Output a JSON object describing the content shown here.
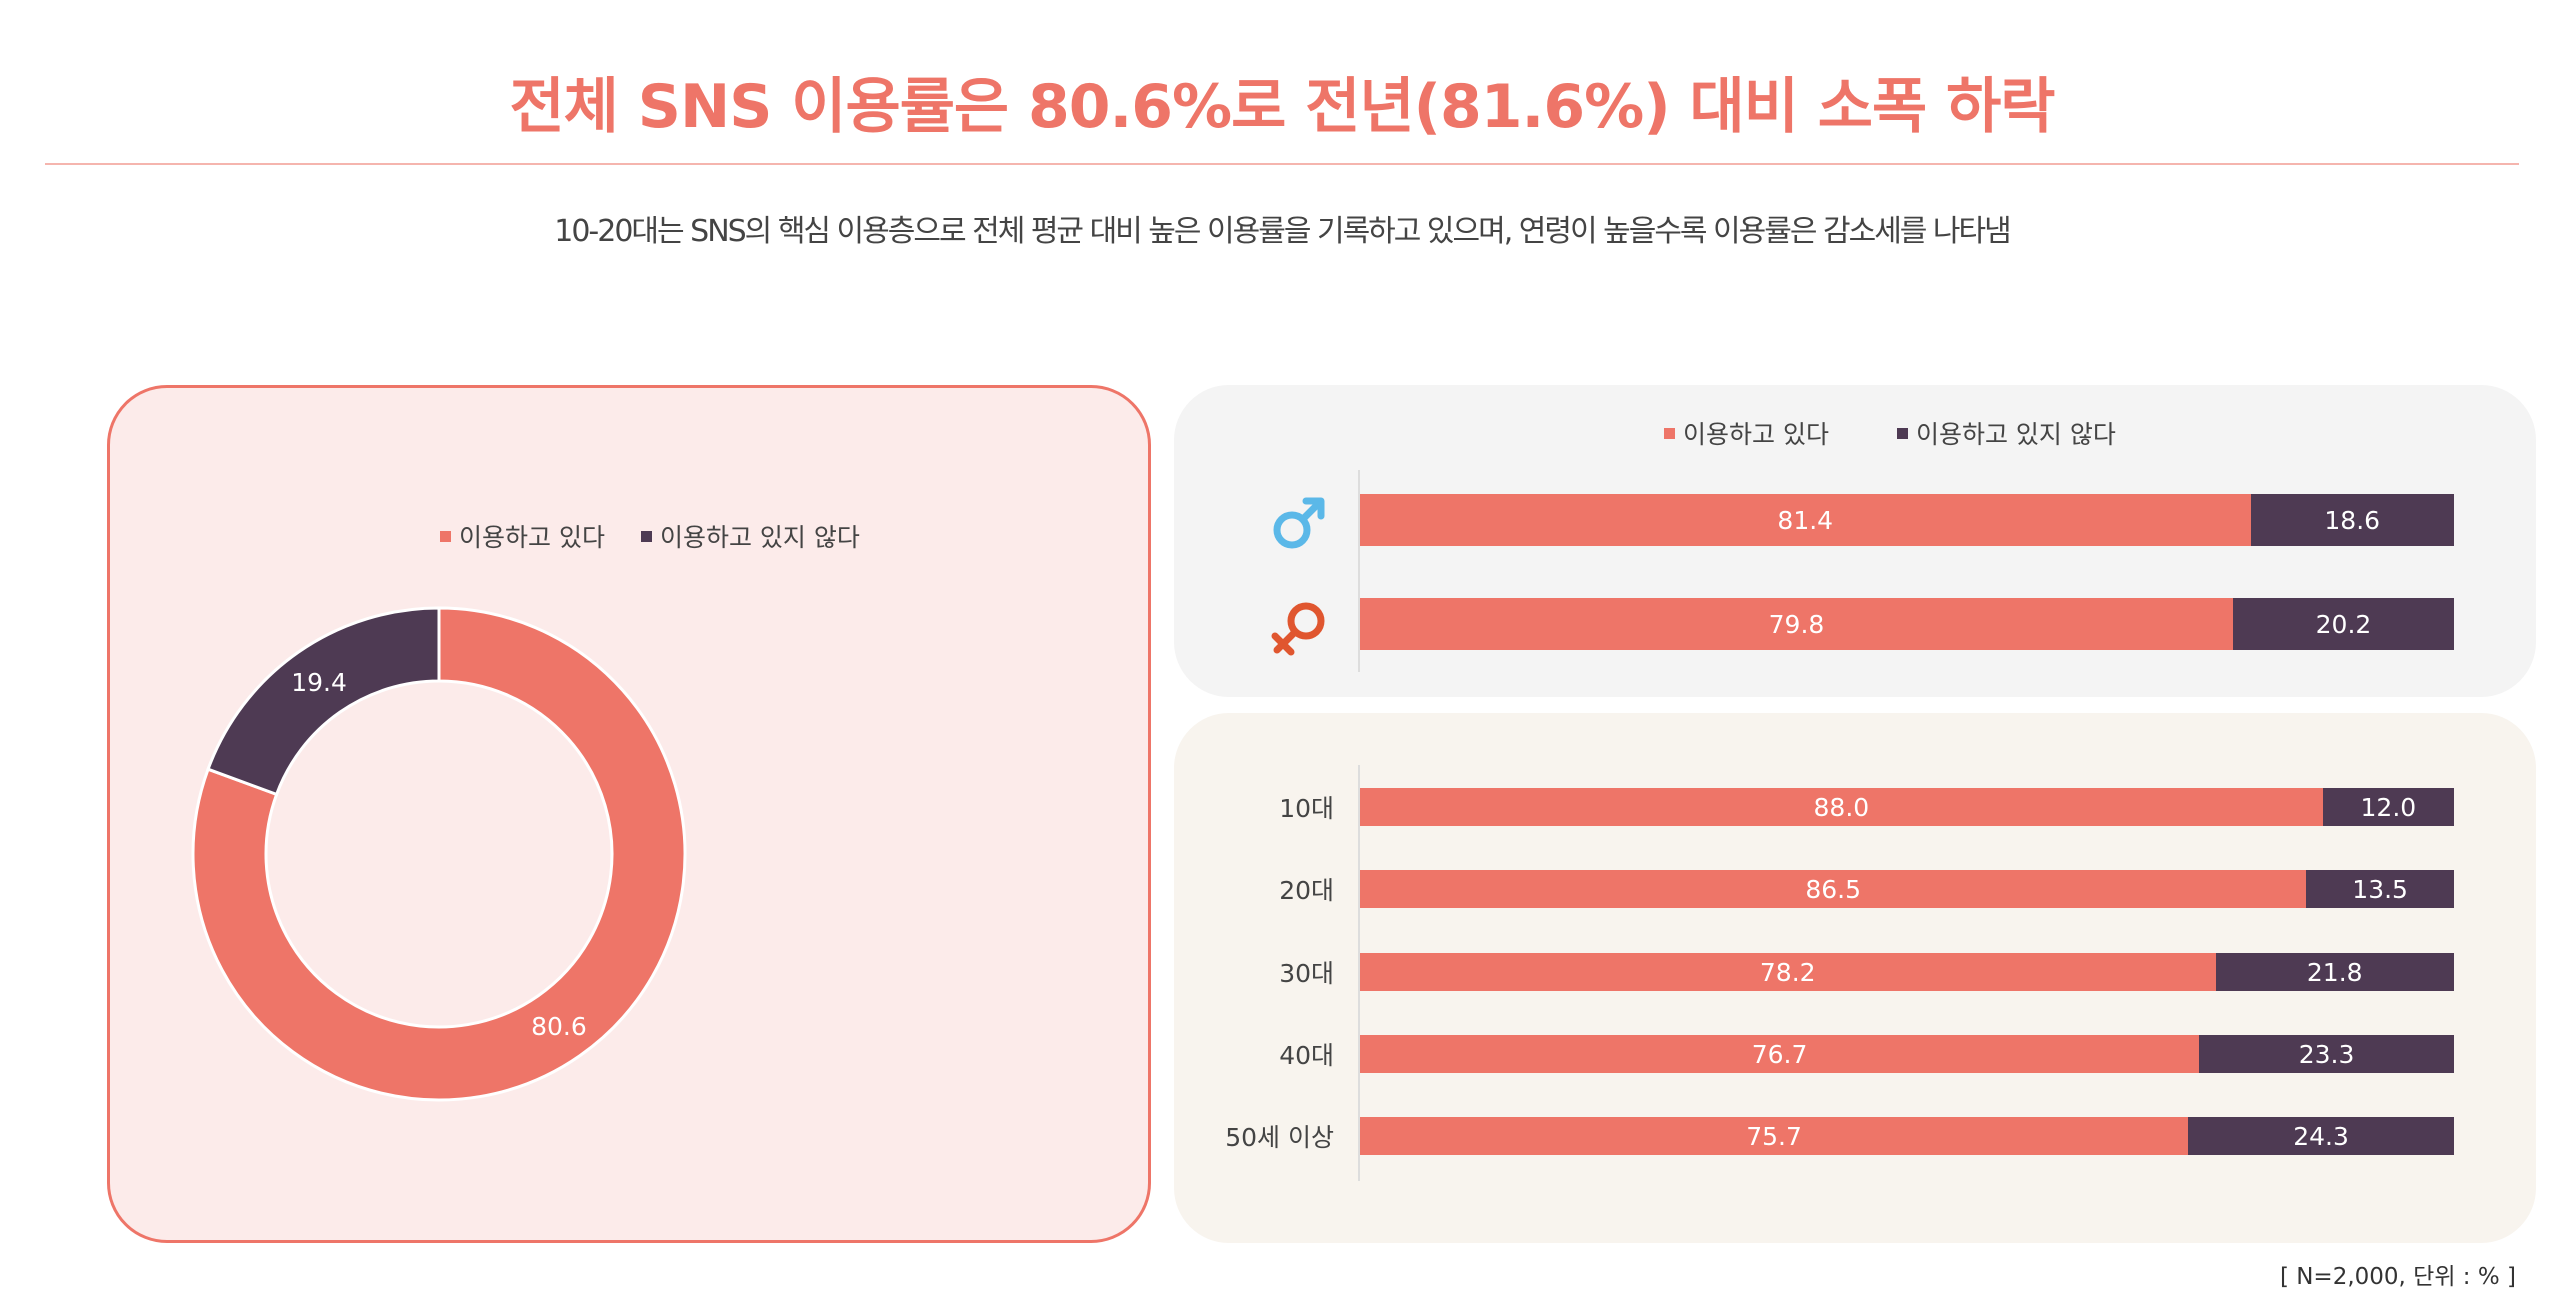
{
  "title": "전체 SNS 이용률은 80.6%로 전년(81.6%) 대비 소폭 하락",
  "subtitle": "10-20대는 SNS의 핵심 이용층으로 전체 평균 대비 높은 이용률을 기록하고 있으며, 연령이 높을수록 이용률은 감소세를 나타냄",
  "note": "[ N=2,000, 단위 : % ]",
  "colors": {
    "use": "#EE7568",
    "nonuse": "#4E3A53",
    "male_icon": "#5BB8E8",
    "female_icon": "#E0562F"
  },
  "legend": {
    "use": "이용하고 있다",
    "nonuse": "이용하고 있지 않다"
  },
  "chart_data": [
    {
      "type": "pie",
      "variant": "donut",
      "labels": [
        "이용하고 있다",
        "이용하고 있지 않다"
      ],
      "values": [
        80.6,
        19.4
      ],
      "colors": [
        "#EE7568",
        "#4E3A53"
      ],
      "legend_placement": "top"
    },
    {
      "type": "bar",
      "orientation": "horizontal",
      "stacked": true,
      "categories": [
        "male-icon",
        "female-icon"
      ],
      "series": [
        {
          "name": "이용하고 있다",
          "values": [
            81.4,
            79.8
          ]
        },
        {
          "name": "이용하고 있지 않다",
          "values": [
            18.6,
            20.2
          ]
        }
      ],
      "xlim": [
        0,
        100
      ],
      "legend_placement": "top"
    },
    {
      "type": "bar",
      "orientation": "horizontal",
      "stacked": true,
      "categories": [
        "10대",
        "20대",
        "30대",
        "40대",
        "50세 이상"
      ],
      "series": [
        {
          "name": "이용하고 있다",
          "values": [
            88.0,
            86.5,
            78.2,
            76.7,
            75.7
          ]
        },
        {
          "name": "이용하고 있지 않다",
          "values": [
            12.0,
            13.5,
            21.8,
            23.3,
            24.3
          ]
        }
      ],
      "xlim": [
        0,
        100
      ]
    }
  ]
}
